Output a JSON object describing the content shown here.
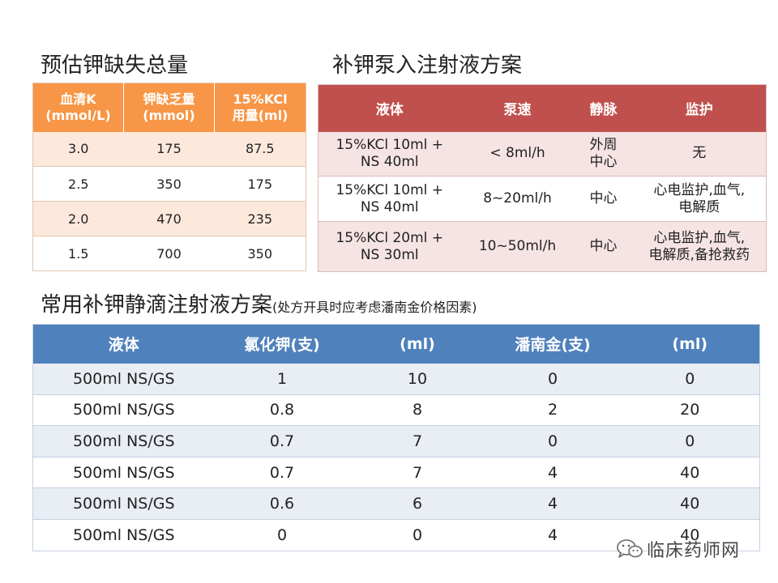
{
  "potassium_deficit": {
    "title": "预估钾缺失总量",
    "headers": [
      [
        "血清K",
        "(mmol/L)"
      ],
      [
        "钾缺乏量",
        "(mmol)"
      ],
      [
        "15%KCl",
        "用量(ml)"
      ]
    ],
    "rows": [
      [
        "3.0",
        "175",
        "87.5"
      ],
      [
        "2.5",
        "350",
        "175"
      ],
      [
        "2.0",
        "470",
        "235"
      ],
      [
        "1.5",
        "700",
        "350"
      ]
    ]
  },
  "pump_plan": {
    "title": "补钾泵入注射液方案",
    "headers": [
      "液体",
      "泵速",
      "静脉",
      "监护"
    ],
    "rows": [
      [
        [
          "15%KCl 10ml +",
          "NS 40ml"
        ],
        [
          "< 8ml/h"
        ],
        [
          "外周",
          "中心"
        ],
        [
          "无"
        ]
      ],
      [
        [
          "15%KCl 10ml +",
          "NS 40ml"
        ],
        [
          "8~20ml/h"
        ],
        [
          "中心"
        ],
        [
          "心电监护,血气,",
          "电解质"
        ]
      ],
      [
        [
          "15%KCl 20ml +",
          "NS 30ml"
        ],
        [
          "10~50ml/h"
        ],
        [
          "中心"
        ],
        [
          "心电监护,血气,",
          "电解质,备抢救药"
        ]
      ]
    ]
  },
  "drip_plan": {
    "title": "常用补钾静滴注射液方案",
    "subtitle": "(处方开具时应考虑潘南金价格因素)",
    "headers": [
      "液体",
      "氯化钾(支)",
      "(ml)",
      "潘南金(支)",
      "(ml)"
    ],
    "rows": [
      [
        "500ml NS/GS",
        "1",
        "10",
        "0",
        "0"
      ],
      [
        "500ml NS/GS",
        "0.8",
        "8",
        "2",
        "20"
      ],
      [
        "500ml NS/GS",
        "0.7",
        "7",
        "0",
        "0"
      ],
      [
        "500ml NS/GS",
        "0.7",
        "7",
        "4",
        "40"
      ],
      [
        "500ml NS/GS",
        "0.6",
        "6",
        "4",
        "40"
      ],
      [
        "500ml NS/GS",
        "0",
        "0",
        "4",
        "40"
      ]
    ]
  },
  "watermark": {
    "text": "临床药师网",
    "icon": "wechat-icon"
  },
  "colors": {
    "orange_header": "#f79646",
    "red_header": "#c0504d",
    "blue_header": "#4f81bd"
  }
}
